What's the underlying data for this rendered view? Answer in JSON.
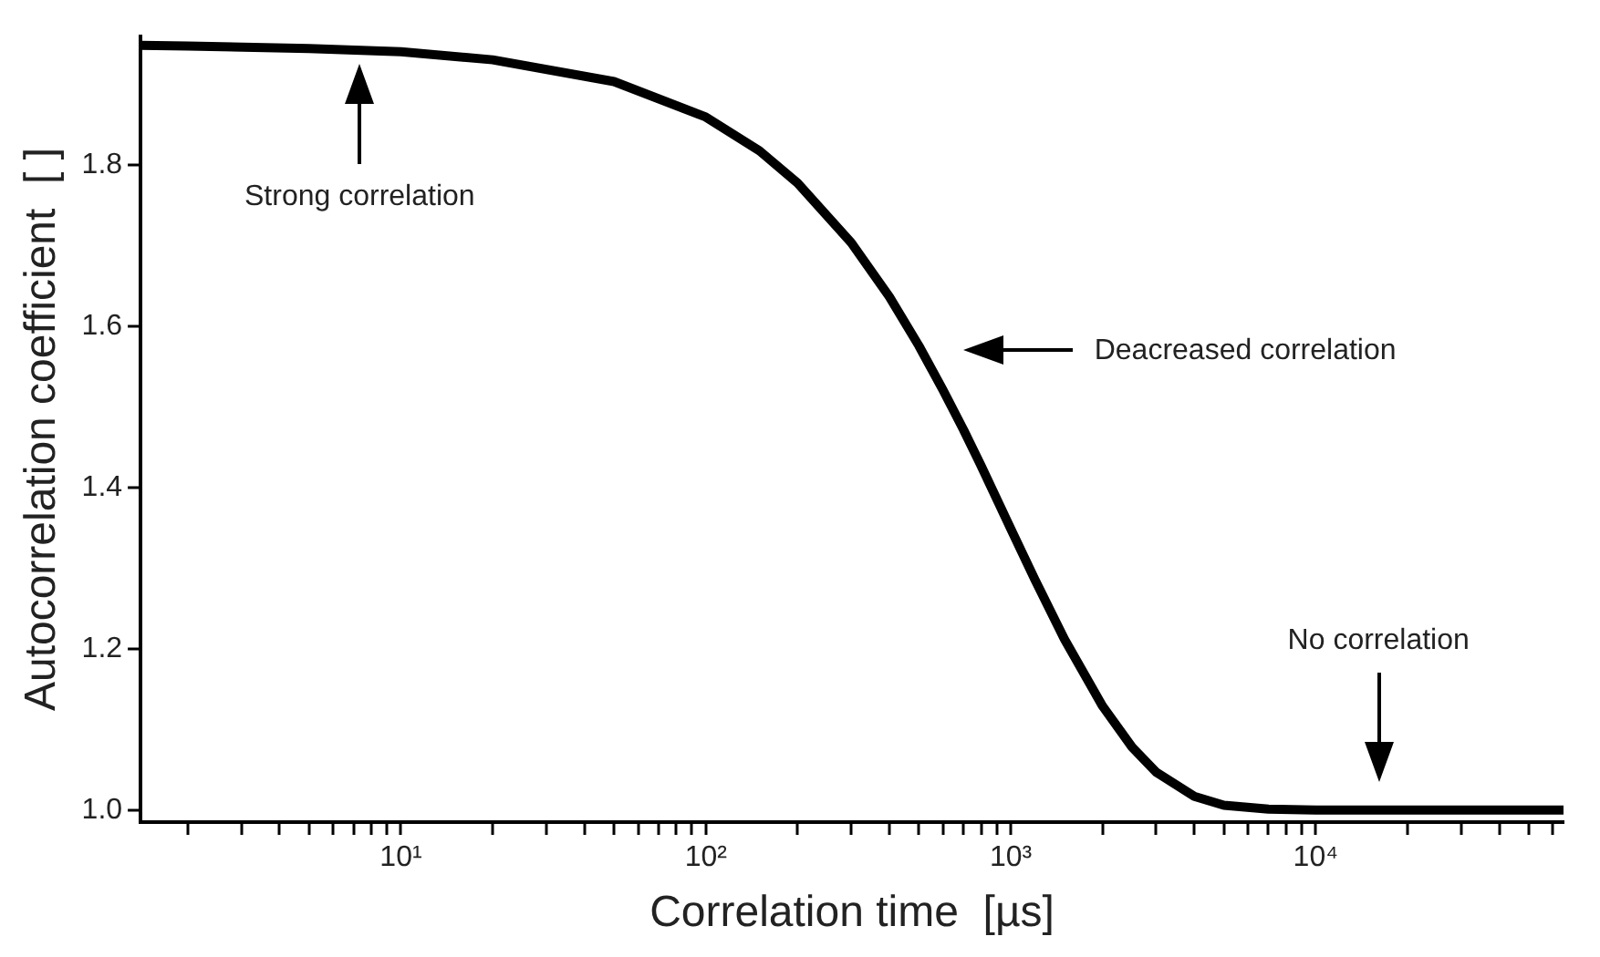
{
  "chart_data": {
    "type": "line",
    "xlabel": "Correlation time  [µs]",
    "ylabel": "Autocorrelation coefficient  [ ]",
    "log": "x",
    "grid": false,
    "legend": false,
    "marker": "none",
    "line_style": "solid",
    "x": [
      1.4,
      2,
      5,
      10,
      20,
      50,
      100,
      150,
      200,
      300,
      400,
      500,
      600,
      700,
      800,
      1000,
      1200,
      1500,
      2000,
      2500,
      3000,
      4000,
      5000,
      7000,
      10000,
      20000,
      65000
    ],
    "series": [
      {
        "color": "#000000",
        "values": [
          1.949,
          1.948,
          1.945,
          1.941,
          1.931,
          1.904,
          1.86,
          1.818,
          1.778,
          1.704,
          1.637,
          1.576,
          1.521,
          1.472,
          1.427,
          1.349,
          1.286,
          1.212,
          1.129,
          1.078,
          1.047,
          1.017,
          1.006,
          1.001,
          1.0,
          1.0,
          1.0
        ]
      }
    ],
    "xlim": [
      1.4,
      65000
    ],
    "ylim": [
      0.985,
      1.96
    ],
    "xticks": [
      {
        "value": 2,
        "label": null
      },
      {
        "value": 3,
        "label": null
      },
      {
        "value": 4,
        "label": null
      },
      {
        "value": 5,
        "label": null
      },
      {
        "value": 6,
        "label": null
      },
      {
        "value": 7,
        "label": null
      },
      {
        "value": 8,
        "label": null
      },
      {
        "value": 9,
        "label": null
      },
      {
        "value": 10,
        "label": "10¹"
      },
      {
        "value": 20,
        "label": null
      },
      {
        "value": 30,
        "label": null
      },
      {
        "value": 40,
        "label": null
      },
      {
        "value": 50,
        "label": null
      },
      {
        "value": 60,
        "label": null
      },
      {
        "value": 70,
        "label": null
      },
      {
        "value": 80,
        "label": null
      },
      {
        "value": 90,
        "label": null
      },
      {
        "value": 100,
        "label": "10²"
      },
      {
        "value": 200,
        "label": null
      },
      {
        "value": 300,
        "label": null
      },
      {
        "value": 400,
        "label": null
      },
      {
        "value": 500,
        "label": null
      },
      {
        "value": 600,
        "label": null
      },
      {
        "value": 700,
        "label": null
      },
      {
        "value": 800,
        "label": null
      },
      {
        "value": 900,
        "label": null
      },
      {
        "value": 1000,
        "label": "10³"
      },
      {
        "value": 2000,
        "label": null
      },
      {
        "value": 3000,
        "label": null
      },
      {
        "value": 4000,
        "label": null
      },
      {
        "value": 5000,
        "label": null
      },
      {
        "value": 6000,
        "label": null
      },
      {
        "value": 7000,
        "label": null
      },
      {
        "value": 8000,
        "label": null
      },
      {
        "value": 9000,
        "label": null
      },
      {
        "value": 10000,
        "label": "10⁴"
      },
      {
        "value": 20000,
        "label": null
      },
      {
        "value": 30000,
        "label": null
      },
      {
        "value": 40000,
        "label": null
      },
      {
        "value": 50000,
        "label": null
      },
      {
        "value": 60000,
        "label": null
      }
    ],
    "yticks": [
      {
        "value": 1,
        "label": "1.0"
      },
      {
        "value": 1.2,
        "label": "1.2"
      },
      {
        "value": 1.4,
        "label": "1.4"
      },
      {
        "value": 1.6,
        "label": "1.6"
      },
      {
        "value": 1.8,
        "label": "1.8"
      }
    ],
    "annotations": [
      "Strong correlation",
      "Deacreased correlation",
      "No correlation"
    ]
  }
}
